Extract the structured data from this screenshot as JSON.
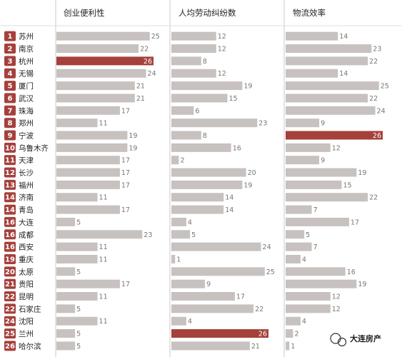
{
  "chart_data": {
    "type": "bar",
    "columns": [
      "创业便利性",
      "人均劳动纠纷数",
      "物流效率"
    ],
    "ranks": [
      1,
      2,
      3,
      4,
      5,
      6,
      7,
      8,
      9,
      10,
      11,
      12,
      13,
      14,
      14,
      16,
      16,
      16,
      19,
      20,
      21,
      22,
      22,
      24,
      25,
      26
    ],
    "categories": [
      "苏州",
      "南京",
      "杭州",
      "无锡",
      "厦门",
      "武汉",
      "珠海",
      "郑州",
      "宁波",
      "乌鲁木齐",
      "天津",
      "长沙",
      "福州",
      "济南",
      "青岛",
      "大连",
      "成都",
      "西安",
      "重庆",
      "太原",
      "贵阳",
      "昆明",
      "石家庄",
      "沈阳",
      "兰州",
      "哈尔滨"
    ],
    "series": [
      {
        "name": "创业便利性",
        "values": [
          25,
          22,
          26,
          24,
          21,
          21,
          17,
          11,
          19,
          19,
          17,
          17,
          17,
          11,
          17,
          5,
          23,
          11,
          11,
          5,
          17,
          11,
          5,
          11,
          5,
          5
        ],
        "highlight": [
          2
        ]
      },
      {
        "name": "人均劳动纠纷数",
        "values": [
          12,
          12,
          8,
          12,
          19,
          15,
          6,
          23,
          8,
          16,
          2,
          20,
          19,
          14,
          14,
          4,
          5,
          24,
          1,
          25,
          9,
          17,
          22,
          4,
          26,
          21
        ],
        "highlight": [
          24
        ]
      },
      {
        "name": "物流效率",
        "values": [
          14,
          23,
          22,
          14,
          25,
          22,
          24,
          9,
          26,
          12,
          9,
          19,
          15,
          22,
          7,
          17,
          5,
          7,
          4,
          16,
          19,
          12,
          12,
          4,
          2,
          1
        ],
        "highlight": [
          8
        ]
      }
    ],
    "xlim": [
      0,
      26
    ],
    "colors": {
      "bar": "#c7c2bf",
      "highlight": "#a5403b",
      "rank_badge": "#a5403b",
      "value_text": "#777777"
    }
  },
  "watermark": {
    "text": "大连房产",
    "icon": "wechat-icon"
  }
}
